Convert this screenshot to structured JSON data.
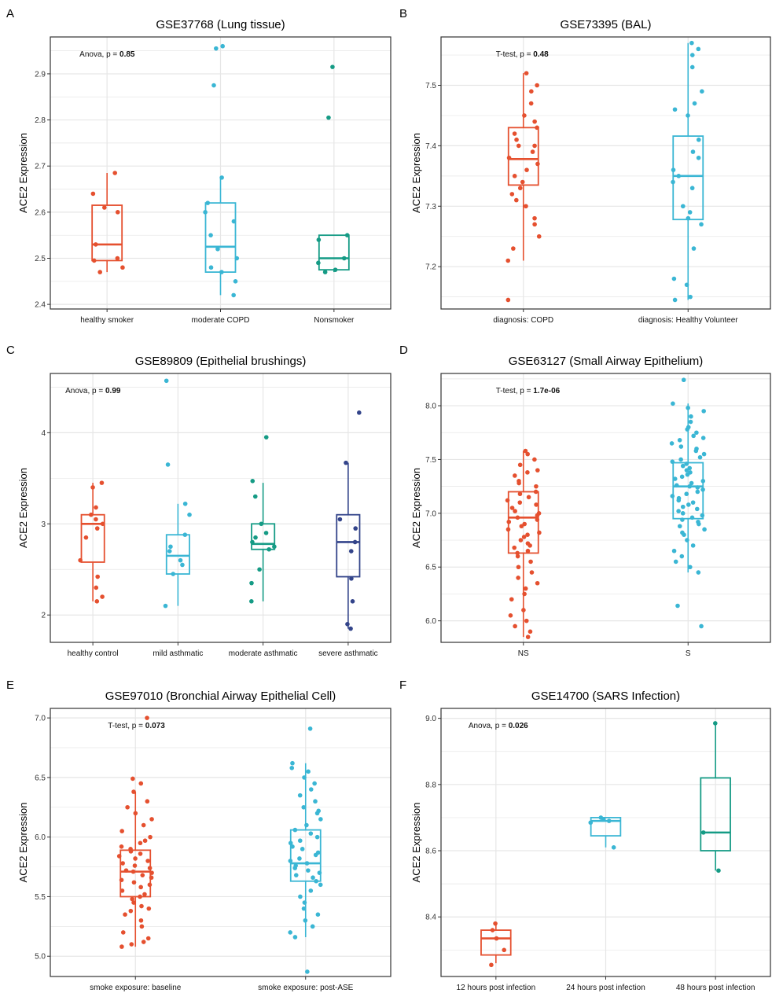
{
  "colors": {
    "red": "#e5502f",
    "cyan": "#3ab6d4",
    "teal": "#159b85",
    "navy": "#33448a",
    "grid": "#e6e6e6",
    "frame": "#333333"
  },
  "chart_data": [
    {
      "panel": "A",
      "type": "boxplot",
      "title": "GSE37768 (Lung tissue)",
      "ylabel": "ACE2 Expression",
      "xlabel": "",
      "stat_label": "Anova, p = ",
      "stat_value": "0.85",
      "ylim": [
        2.39,
        2.98
      ],
      "yticks": [
        2.4,
        2.5,
        2.6,
        2.7,
        2.8,
        2.9
      ],
      "ytick_labels": [
        "2.4",
        "2.5",
        "2.6",
        "2.7",
        "2.8",
        "2.9"
      ],
      "categories": [
        "healthy smoker",
        "moderate COPD",
        "Nonsmoker"
      ],
      "colors": [
        "#e5502f",
        "#3ab6d4",
        "#159b85"
      ],
      "boxes": [
        {
          "min": 2.47,
          "q1": 2.495,
          "median": 2.53,
          "q3": 2.615,
          "max": 2.685
        },
        {
          "min": 2.42,
          "q1": 2.47,
          "median": 2.525,
          "q3": 2.62,
          "max": 2.675
        },
        {
          "min": 2.47,
          "q1": 2.475,
          "median": 2.5,
          "q3": 2.55,
          "max": 2.55
        }
      ],
      "points": [
        [
          2.685,
          2.64,
          2.61,
          2.6,
          2.53,
          2.5,
          2.495,
          2.48,
          2.47
        ],
        [
          2.96,
          2.955,
          2.875,
          2.675,
          2.62,
          2.6,
          2.58,
          2.55,
          2.52,
          2.5,
          2.48,
          2.47,
          2.45,
          2.42
        ],
        [
          2.915,
          2.805,
          2.55,
          2.54,
          2.5,
          2.49,
          2.475,
          2.47
        ]
      ]
    },
    {
      "panel": "B",
      "type": "boxplot",
      "title": "GSE73395 (BAL)",
      "ylabel": "ACE2 Expression",
      "xlabel": "",
      "stat_label": "T-test, p = ",
      "stat_value": "0.48",
      "ylim": [
        7.13,
        7.58
      ],
      "yticks": [
        7.2,
        7.3,
        7.4,
        7.5
      ],
      "ytick_labels": [
        "7.2",
        "7.3",
        "7.4",
        "7.5"
      ],
      "categories": [
        "diagnosis: COPD",
        "diagnosis: Healthy Volunteer"
      ],
      "colors": [
        "#e5502f",
        "#3ab6d4"
      ],
      "boxes": [
        {
          "min": 7.21,
          "q1": 7.335,
          "median": 7.378,
          "q3": 7.43,
          "max": 7.52
        },
        {
          "min": 7.145,
          "q1": 7.278,
          "median": 7.35,
          "q3": 7.416,
          "max": 7.57
        }
      ],
      "points": [
        [
          7.52,
          7.5,
          7.49,
          7.47,
          7.45,
          7.44,
          7.43,
          7.42,
          7.41,
          7.4,
          7.4,
          7.39,
          7.38,
          7.37,
          7.36,
          7.35,
          7.34,
          7.33,
          7.32,
          7.31,
          7.3,
          7.28,
          7.27,
          7.25,
          7.23,
          7.21,
          7.145
        ],
        [
          7.57,
          7.56,
          7.55,
          7.53,
          7.49,
          7.47,
          7.46,
          7.45,
          7.41,
          7.39,
          7.38,
          7.36,
          7.35,
          7.34,
          7.33,
          7.3,
          7.29,
          7.28,
          7.27,
          7.23,
          7.18,
          7.17,
          7.15,
          7.145
        ]
      ]
    },
    {
      "panel": "C",
      "type": "boxplot",
      "title": "GSE89809 (Epithelial brushings)",
      "ylabel": "ACE2 Expression",
      "xlabel": "",
      "stat_label": "Anova, p = ",
      "stat_value": "0.99",
      "ylim": [
        1.7,
        4.65
      ],
      "yticks": [
        2,
        3,
        4
      ],
      "ytick_labels": [
        "2",
        "3",
        "4"
      ],
      "categories": [
        "healthy control",
        "mild asthmatic",
        "moderate asthmatic",
        "severe asthmatic"
      ],
      "colors": [
        "#e5502f",
        "#3ab6d4",
        "#159b85",
        "#33448a"
      ],
      "boxes": [
        {
          "min": 2.15,
          "q1": 2.58,
          "median": 3.0,
          "q3": 3.1,
          "max": 3.45
        },
        {
          "min": 2.1,
          "q1": 2.45,
          "median": 2.65,
          "q3": 2.88,
          "max": 3.22
        },
        {
          "min": 2.15,
          "q1": 2.72,
          "median": 2.78,
          "q3": 3.0,
          "max": 3.45
        },
        {
          "min": 1.85,
          "q1": 2.42,
          "median": 2.8,
          "q3": 3.1,
          "max": 3.67
        }
      ],
      "points": [
        [
          3.45,
          3.4,
          3.18,
          3.1,
          3.05,
          3.0,
          2.95,
          2.85,
          2.6,
          2.42,
          2.3,
          2.2,
          2.15
        ],
        [
          4.57,
          3.65,
          3.22,
          3.1,
          2.88,
          2.75,
          2.7,
          2.6,
          2.55,
          2.45,
          2.1
        ],
        [
          3.95,
          3.47,
          3.3,
          3.0,
          2.9,
          2.85,
          2.8,
          2.75,
          2.72,
          2.5,
          2.35,
          2.15
        ],
        [
          4.22,
          3.67,
          3.05,
          2.95,
          2.8,
          2.7,
          2.4,
          2.15,
          1.9,
          1.85
        ]
      ]
    },
    {
      "panel": "D",
      "type": "boxplot",
      "title": "GSE63127 (Small Airway Epithelium)",
      "ylabel": "ACE2 Expression",
      "xlabel": "",
      "stat_label": "T-test, p = ",
      "stat_value": "1.7e-06",
      "ylim": [
        5.8,
        8.3
      ],
      "yticks": [
        6.0,
        6.5,
        7.0,
        7.5,
        8.0
      ],
      "ytick_labels": [
        "6.0",
        "6.5",
        "7.0",
        "7.5",
        "8.0"
      ],
      "categories": [
        "NS",
        "S"
      ],
      "colors": [
        "#e5502f",
        "#3ab6d4"
      ],
      "boxes": [
        {
          "min": 5.85,
          "q1": 6.63,
          "median": 6.96,
          "q3": 7.2,
          "max": 7.58
        },
        {
          "min": 6.45,
          "q1": 6.95,
          "median": 7.25,
          "q3": 7.47,
          "max": 8.02
        }
      ],
      "points": [
        [
          7.58,
          7.55,
          7.5,
          7.45,
          7.4,
          7.38,
          7.35,
          7.3,
          7.28,
          7.25,
          7.2,
          7.18,
          7.15,
          7.12,
          7.1,
          7.08,
          7.05,
          7.02,
          7.0,
          6.98,
          6.96,
          6.94,
          6.92,
          6.9,
          6.88,
          6.85,
          6.82,
          6.8,
          6.78,
          6.75,
          6.72,
          6.7,
          6.68,
          6.65,
          6.63,
          6.6,
          6.55,
          6.5,
          6.45,
          6.4,
          6.35,
          6.3,
          6.25,
          6.2,
          6.1,
          6.05,
          6.0,
          5.95,
          5.9,
          5.85
        ],
        [
          8.24,
          8.02,
          7.98,
          7.95,
          7.9,
          7.85,
          7.8,
          7.78,
          7.75,
          7.72,
          7.7,
          7.68,
          7.65,
          7.62,
          7.6,
          7.58,
          7.55,
          7.52,
          7.5,
          7.48,
          7.46,
          7.44,
          7.42,
          7.4,
          7.38,
          7.36,
          7.34,
          7.32,
          7.3,
          7.28,
          7.26,
          7.25,
          7.24,
          7.22,
          7.2,
          7.18,
          7.16,
          7.14,
          7.12,
          7.1,
          7.08,
          7.06,
          7.04,
          7.02,
          7.0,
          6.98,
          6.96,
          6.94,
          6.92,
          6.9,
          6.88,
          6.85,
          6.82,
          6.8,
          6.75,
          6.7,
          6.65,
          6.6,
          6.55,
          6.5,
          6.45,
          6.14,
          5.95
        ]
      ]
    },
    {
      "panel": "E",
      "type": "boxplot",
      "title": "GSE97010 (Bronchial Airway Epithelial Cell)",
      "ylabel": "ACE2 Expression",
      "xlabel": "",
      "stat_label": "T-test, p = ",
      "stat_value": "0.073",
      "ylim": [
        4.83,
        7.08
      ],
      "yticks": [
        5.0,
        5.5,
        6.0,
        6.5,
        7.0
      ],
      "ytick_labels": [
        "5.0",
        "5.5",
        "6.0",
        "6.5",
        "7.0"
      ],
      "categories": [
        "smoke exposure: baseline",
        "smoke exposure: post-ASE"
      ],
      "colors": [
        "#e5502f",
        "#3ab6d4"
      ],
      "boxes": [
        {
          "min": 5.08,
          "q1": 5.5,
          "median": 5.71,
          "q3": 5.89,
          "max": 6.38
        },
        {
          "min": 5.16,
          "q1": 5.63,
          "median": 5.78,
          "q3": 6.06,
          "max": 6.62
        }
      ],
      "points": [
        [
          7.0,
          6.49,
          6.45,
          6.38,
          6.3,
          6.25,
          6.2,
          6.15,
          6.1,
          6.05,
          6.0,
          5.97,
          5.95,
          5.92,
          5.9,
          5.88,
          5.86,
          5.84,
          5.82,
          5.8,
          5.78,
          5.76,
          5.74,
          5.72,
          5.71,
          5.7,
          5.68,
          5.66,
          5.64,
          5.62,
          5.6,
          5.58,
          5.55,
          5.52,
          5.5,
          5.48,
          5.45,
          5.42,
          5.4,
          5.38,
          5.35,
          5.3,
          5.25,
          5.2,
          5.15,
          5.12,
          5.1,
          5.08
        ],
        [
          6.91,
          6.62,
          6.58,
          6.55,
          6.5,
          6.45,
          6.4,
          6.35,
          6.3,
          6.25,
          6.22,
          6.2,
          6.15,
          6.1,
          6.06,
          6.03,
          6.0,
          5.97,
          5.95,
          5.92,
          5.9,
          5.87,
          5.85,
          5.82,
          5.8,
          5.78,
          5.76,
          5.74,
          5.72,
          5.7,
          5.68,
          5.66,
          5.63,
          5.6,
          5.55,
          5.5,
          5.45,
          5.4,
          5.35,
          5.3,
          5.25,
          5.2,
          5.16,
          4.87
        ]
      ]
    },
    {
      "panel": "F",
      "type": "boxplot",
      "title": "GSE14700 (SARS Infection)",
      "ylabel": "ACE2 Expression",
      "xlabel": "",
      "stat_label": "Anova, p = ",
      "stat_value": "0.026",
      "ylim": [
        8.22,
        9.03
      ],
      "yticks": [
        8.4,
        8.6,
        8.8,
        9.0
      ],
      "ytick_labels": [
        "8.4",
        "8.6",
        "8.8",
        "9.0"
      ],
      "categories": [
        "12 hours post infection",
        "24 hours post infection",
        "48 hours post infection"
      ],
      "colors": [
        "#e5502f",
        "#3ab6d4",
        "#159b85"
      ],
      "boxes": [
        {
          "min": 8.26,
          "q1": 8.285,
          "median": 8.335,
          "q3": 8.36,
          "max": 8.38
        },
        {
          "min": 8.61,
          "q1": 8.645,
          "median": 8.69,
          "q3": 8.7,
          "max": 8.7
        },
        {
          "min": 8.54,
          "q1": 8.6,
          "median": 8.655,
          "q3": 8.82,
          "max": 8.985
        }
      ],
      "points": [
        [
          8.38,
          8.36,
          8.335,
          8.3,
          8.255
        ],
        [
          8.7,
          8.695,
          8.69,
          8.685,
          8.61
        ],
        [
          8.985,
          8.655,
          8.54
        ]
      ]
    }
  ]
}
